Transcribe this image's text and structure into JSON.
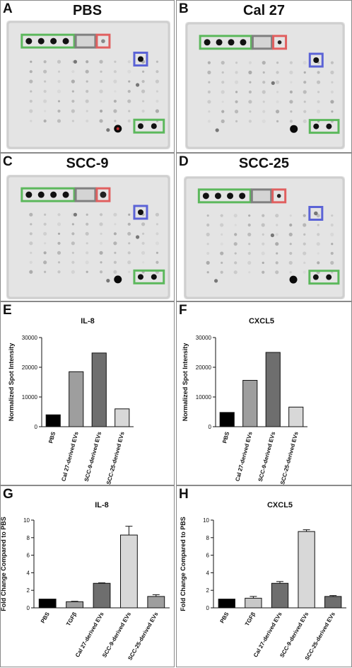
{
  "blots": [
    {
      "letter": "A",
      "title": "PBS"
    },
    {
      "letter": "B",
      "title": "Cal 27"
    },
    {
      "letter": "C",
      "title": "SCC-9"
    },
    {
      "letter": "D",
      "title": "SCC-25"
    }
  ],
  "bar_panels": [
    {
      "letter": "E"
    },
    {
      "letter": "F"
    },
    {
      "letter": "G"
    },
    {
      "letter": "H"
    }
  ],
  "colors": {
    "box_green": "#5cb85c",
    "box_red": "#e06060",
    "box_blue": "#5b63d6",
    "box_gray": "#808080",
    "black": "#000000",
    "light_gray": "#c8c8c8",
    "mid_gray": "#9e9e9e",
    "dark_gray": "#6e6e6e",
    "very_light_gray": "#d8d8d8"
  },
  "chart_data": [
    {
      "type": "bar",
      "title": "IL-8",
      "ylabel": "Normalized Spot Intensity",
      "xlabel": "",
      "categories": [
        "PBS",
        "Cal 27-derived EVs",
        "SCC-9-derived EVs",
        "SCC-25-derived EVs"
      ],
      "values": [
        4000,
        18500,
        24800,
        6000
      ],
      "bar_colors": [
        "#000000",
        "#9e9e9e",
        "#6e6e6e",
        "#d8d8d8"
      ],
      "ylim": [
        0,
        30000
      ],
      "yticks": [
        0,
        10000,
        20000,
        30000
      ]
    },
    {
      "type": "bar",
      "title": "CXCL5",
      "ylabel": "Normalized Spot Intensity",
      "xlabel": "",
      "categories": [
        "PBS",
        "Cal 27-derived EVs",
        "SCC-9-derived EVs",
        "SCC-25-derived EVs"
      ],
      "values": [
        4800,
        15600,
        25000,
        6600
      ],
      "bar_colors": [
        "#000000",
        "#9e9e9e",
        "#6e6e6e",
        "#d8d8d8"
      ],
      "ylim": [
        0,
        30000
      ],
      "yticks": [
        0,
        10000,
        20000,
        30000
      ]
    },
    {
      "type": "bar",
      "title": "IL-8",
      "ylabel": "Fold Change Compared to PBS",
      "xlabel": "",
      "categories": [
        "PBS",
        "TGFβ",
        "Cal 27-derived EVs",
        "SCC-9-derived EVs",
        "SCC-25-derived EVs"
      ],
      "values": [
        1.0,
        0.7,
        2.8,
        8.3,
        1.3
      ],
      "errors": [
        0,
        0.05,
        0.05,
        1.0,
        0.2
      ],
      "bar_colors": [
        "#000000",
        "#9e9e9e",
        "#6e6e6e",
        "#d8d8d8",
        "#9e9e9e"
      ],
      "ylim": [
        0,
        10
      ],
      "yticks": [
        0,
        2,
        4,
        6,
        8,
        10
      ]
    },
    {
      "type": "bar",
      "title": "CXCL5",
      "ylabel": "Fold Change Compared to PBS",
      "xlabel": "",
      "categories": [
        "PBS",
        "TGFβ",
        "Cal 27-derived EVs",
        "SCC-9-derived EVs",
        "SCC-25-derived EVs"
      ],
      "values": [
        1.0,
        1.1,
        2.8,
        8.7,
        1.3
      ],
      "errors": [
        0,
        0.2,
        0.2,
        0.2,
        0.1
      ],
      "bar_colors": [
        "#000000",
        "#c8c8c8",
        "#6e6e6e",
        "#d8d8d8",
        "#6e6e6e"
      ],
      "ylim": [
        0,
        10
      ],
      "yticks": [
        0,
        2,
        4,
        6,
        8,
        10
      ]
    }
  ]
}
